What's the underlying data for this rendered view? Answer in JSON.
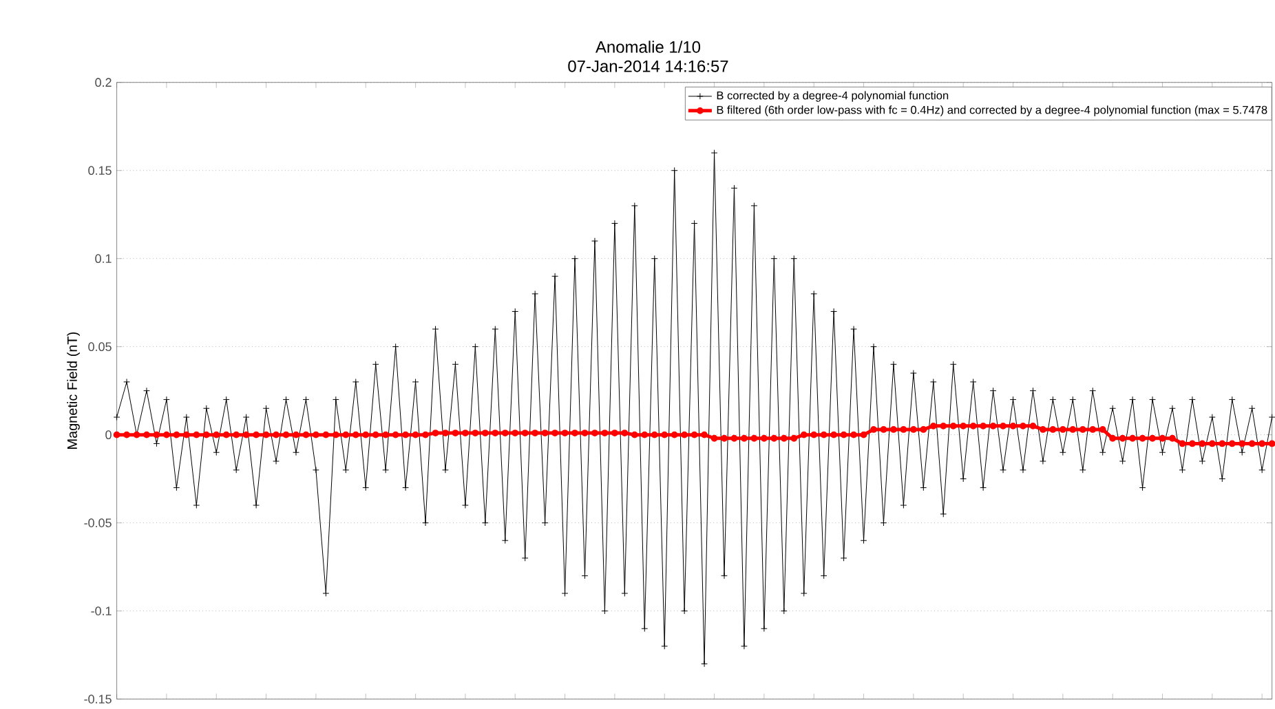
{
  "chart_data": {
    "type": "line",
    "title": "Anomalie 1/10",
    "subtitle": "07-Jan-2014 14:16:57",
    "ylabel": "Magnetic Field (nT)",
    "categories": [
      null,
      null,
      null,
      null,
      null,
      null,
      null,
      null,
      null,
      null,
      null,
      null,
      null,
      null,
      null,
      null,
      null,
      null,
      null,
      null,
      null,
      null,
      null,
      null,
      null,
      null,
      null,
      null,
      null,
      null,
      null,
      null,
      null,
      null,
      null,
      null,
      null,
      null,
      null,
      null,
      null,
      null,
      null,
      null,
      null,
      null,
      null,
      null,
      null,
      null,
      null,
      null,
      null,
      null,
      null,
      null,
      null,
      null,
      null,
      null,
      null,
      null,
      null,
      null,
      null,
      null,
      null,
      null,
      null,
      null,
      null,
      null,
      null,
      null,
      null,
      null,
      null,
      null,
      null,
      null,
      null,
      null,
      null,
      null,
      null,
      null,
      null,
      null,
      null,
      null,
      null,
      null,
      null,
      null,
      null,
      null,
      null,
      null,
      null,
      null,
      null,
      null,
      null,
      null,
      null,
      null,
      null,
      null,
      null,
      null,
      null,
      null,
      null,
      null,
      null,
      null,
      null
    ],
    "series": [
      {
        "name": "B corrected by a degree-4 polynomial function",
        "color": "#000000",
        "marker": "cross",
        "values": [
          0.01,
          0.03,
          0.0,
          0.025,
          -0.005,
          0.02,
          -0.03,
          0.01,
          -0.04,
          0.015,
          -0.01,
          0.02,
          -0.02,
          0.01,
          -0.04,
          0.015,
          -0.015,
          0.02,
          -0.01,
          0.02,
          -0.02,
          -0.09,
          0.02,
          -0.02,
          0.03,
          -0.03,
          0.04,
          -0.02,
          0.05,
          -0.03,
          0.03,
          -0.05,
          0.06,
          -0.02,
          0.04,
          -0.04,
          0.05,
          -0.05,
          0.06,
          -0.06,
          0.07,
          -0.07,
          0.08,
          -0.05,
          0.09,
          -0.09,
          0.1,
          -0.08,
          0.11,
          -0.1,
          0.12,
          -0.09,
          0.13,
          -0.11,
          0.1,
          -0.12,
          0.15,
          -0.1,
          0.12,
          -0.13,
          0.16,
          -0.08,
          0.14,
          -0.12,
          0.13,
          -0.11,
          0.1,
          -0.1,
          0.1,
          -0.09,
          0.08,
          -0.08,
          0.07,
          -0.07,
          0.06,
          -0.06,
          0.05,
          -0.05,
          0.04,
          -0.04,
          0.035,
          -0.03,
          0.03,
          -0.045,
          0.04,
          -0.025,
          0.03,
          -0.03,
          0.025,
          -0.02,
          0.02,
          -0.02,
          0.025,
          -0.015,
          0.02,
          -0.01,
          0.02,
          -0.02,
          0.025,
          -0.01,
          0.015,
          -0.015,
          0.02,
          -0.03,
          0.02,
          -0.01,
          0.015,
          -0.02,
          0.02,
          -0.015,
          0.01,
          -0.025,
          0.02,
          -0.01,
          0.015,
          -0.02,
          0.01
        ]
      },
      {
        "name": "B  filtered (6th order low-pass with fc = 0.4Hz) and corrected by a degree-4 polynomial function (max = 5.7478",
        "color": "#ff0000",
        "marker": "circle",
        "values": [
          0,
          0,
          0,
          0,
          0,
          0,
          0,
          0,
          0,
          0,
          0,
          0,
          0,
          0,
          0,
          0,
          0,
          0,
          0,
          0,
          0,
          0,
          0,
          0,
          0,
          0,
          0,
          0,
          0,
          0,
          0,
          0,
          0.001,
          0.001,
          0.001,
          0.001,
          0.001,
          0.001,
          0.001,
          0.001,
          0.001,
          0.001,
          0.001,
          0.001,
          0.001,
          0.001,
          0.001,
          0.001,
          0.001,
          0.001,
          0.001,
          0.001,
          0,
          0,
          0,
          0,
          0,
          0,
          0,
          0,
          -0.002,
          -0.002,
          -0.002,
          -0.002,
          -0.002,
          -0.002,
          -0.002,
          -0.002,
          -0.002,
          0,
          0,
          0,
          0,
          0,
          0,
          0,
          0.003,
          0.003,
          0.003,
          0.003,
          0.003,
          0.003,
          0.005,
          0.005,
          0.005,
          0.005,
          0.005,
          0.005,
          0.005,
          0.005,
          0.005,
          0.005,
          0.005,
          0.003,
          0.003,
          0.003,
          0.003,
          0.003,
          0.003,
          0.003,
          -0.002,
          -0.002,
          -0.002,
          -0.002,
          -0.002,
          -0.002,
          -0.002,
          -0.005,
          -0.005,
          -0.005,
          -0.005,
          -0.005,
          -0.005,
          -0.005,
          -0.005,
          -0.005,
          -0.005
        ]
      }
    ],
    "ylim": [
      -0.15,
      0.2
    ],
    "yticks": [
      -0.15,
      -0.1,
      -0.05,
      0,
      0.05,
      0.1,
      0.15,
      0.2
    ],
    "tick_labels": "y",
    "grid": "y",
    "legend": "top right"
  }
}
